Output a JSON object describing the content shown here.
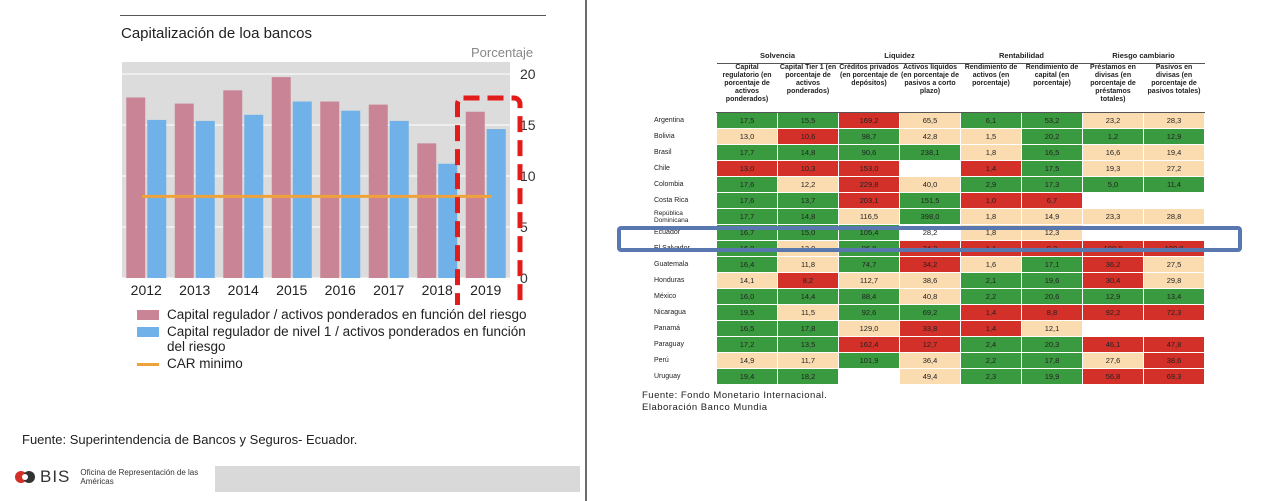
{
  "left": {
    "title": "Capitalización de loa bancos",
    "unit": "Porcentaje",
    "source": "Fuente: Superintendencia de Bancos y Seguros- Ecuador.",
    "logo_text": "BIS",
    "logo_sub": "Oficina de Representación de las Américas"
  },
  "chart_data": {
    "type": "bar",
    "title": "Capitalización de loa bancos",
    "ylabel": "Porcentaje",
    "categories": [
      "2012",
      "2013",
      "2014",
      "2015",
      "2016",
      "2017",
      "2018",
      "2019"
    ],
    "series": [
      {
        "name": "Capital regulador / activos ponderados en función del riesgo",
        "values": [
          17.7,
          17.1,
          18.4,
          19.7,
          17.3,
          17.0,
          13.2,
          16.3
        ]
      },
      {
        "name": "Capital regulador de nivel 1 / activos ponderados en función del riesgo",
        "values": [
          15.5,
          15.4,
          16.0,
          17.3,
          16.4,
          15.4,
          11.2,
          14.6
        ]
      },
      {
        "name": "CAR mínimo",
        "type": "line",
        "values": [
          8,
          8,
          8,
          8,
          8,
          8,
          8,
          8
        ]
      }
    ],
    "ylim": [
      0,
      20
    ],
    "yticks": [
      "0",
      "5",
      "10",
      "15",
      "20"
    ],
    "colors": {
      "s1": "#c98595",
      "s2": "#6fb1e8",
      "s3": "#f0a23a",
      "plot_bg": "#dcdcdc",
      "highlight": "#e21b1b"
    },
    "highlight_category": "2019",
    "grid": true
  },
  "legend": [
    {
      "label": "Capital regulador / activos ponderados en función del riesgo",
      "color": "#c98595",
      "kind": "bar"
    },
    {
      "label": "Capital regulador de nivel 1 / activos ponderados en función del riesgo",
      "color": "#6fb1e8",
      "kind": "bar"
    },
    {
      "label": "CAR minimo",
      "color": "#f0a23a",
      "kind": "line"
    }
  ],
  "table": {
    "groups": [
      {
        "label": "Solvencia",
        "span": 2
      },
      {
        "label": "Liquidez",
        "span": 2
      },
      {
        "label": "Rentabilidad",
        "span": 2
      },
      {
        "label": "Riesgo cambiario",
        "span": 2
      }
    ],
    "headers": [
      "Capital regulatorio (en porcentaje de activos ponderados)",
      "Capital Tier 1 (en porcentaje de activos ponderados)",
      "Créditos privados (en porcentaje de depósitos)",
      "Activos líquidos (en porcentaje de pasivos a corto plazo)",
      "Rendimiento de activos (en porcentaje)",
      "Rendimiento de capital (en porcentaje)",
      "Préstamos en divisas (en porcentaje de préstamos totales)",
      "Pasivos en divisas (en porcentaje de pasivos totales)"
    ],
    "rows": [
      {
        "country": "Argentina",
        "cells": [
          [
            "17,5",
            "g"
          ],
          [
            "15,5",
            "g"
          ],
          [
            "169,2",
            "r"
          ],
          [
            "65,5",
            "p"
          ],
          [
            "6,1",
            "g"
          ],
          [
            "53,2",
            "g"
          ],
          [
            "23,2",
            "p"
          ],
          [
            "28,3",
            "p"
          ]
        ]
      },
      {
        "country": "Bolivia",
        "cells": [
          [
            "13,0",
            "p"
          ],
          [
            "10,6",
            "r"
          ],
          [
            "98,7",
            "g"
          ],
          [
            "42,8",
            "p"
          ],
          [
            "1,5",
            "p"
          ],
          [
            "20,2",
            "g"
          ],
          [
            "1,2",
            "g"
          ],
          [
            "12,9",
            "g"
          ]
        ]
      },
      {
        "country": "Brasil",
        "cells": [
          [
            "17,7",
            "g"
          ],
          [
            "14,8",
            "g"
          ],
          [
            "90,6",
            "g"
          ],
          [
            "238,1",
            "g"
          ],
          [
            "1,8",
            "p"
          ],
          [
            "16,5",
            "g"
          ],
          [
            "16,6",
            "p"
          ],
          [
            "19,4",
            "p"
          ]
        ]
      },
      {
        "country": "Chile",
        "cells": [
          [
            "13,0",
            "r"
          ],
          [
            "10,3",
            "r"
          ],
          [
            "153,0",
            "r"
          ],
          [
            "",
            "w"
          ],
          [
            "1,4",
            "r"
          ],
          [
            "17,5",
            "g"
          ],
          [
            "19,3",
            "p"
          ],
          [
            "27,2",
            "p"
          ]
        ]
      },
      {
        "country": "Colombia",
        "cells": [
          [
            "17,6",
            "g"
          ],
          [
            "12,2",
            "p"
          ],
          [
            "229,8",
            "r"
          ],
          [
            "40,0",
            "p"
          ],
          [
            "2,9",
            "g"
          ],
          [
            "17,3",
            "g"
          ],
          [
            "5,0",
            "g"
          ],
          [
            "11,4",
            "g"
          ]
        ]
      },
      {
        "country": "Costa Rica",
        "cells": [
          [
            "17,6",
            "g"
          ],
          [
            "13,7",
            "g"
          ],
          [
            "203,1",
            "r"
          ],
          [
            "151,5",
            "g"
          ],
          [
            "1,0",
            "r"
          ],
          [
            "6,7",
            "r"
          ],
          [
            "",
            ""
          ],
          [
            "",
            ""
          ]
        ]
      },
      {
        "country": "República Dominicana",
        "cells": [
          [
            "17,7",
            "g"
          ],
          [
            "14,8",
            "g"
          ],
          [
            "116,5",
            "p"
          ],
          [
            "398,0",
            "g"
          ],
          [
            "1,8",
            "p"
          ],
          [
            "14,9",
            "p"
          ],
          [
            "23,3",
            "p"
          ],
          [
            "28,8",
            "p"
          ]
        ]
      },
      {
        "country": "Ecuador",
        "cells": [
          [
            "16,7",
            "g"
          ],
          [
            "15,0",
            "g"
          ],
          [
            "105,4",
            "g"
          ],
          [
            "28,2",
            "w"
          ],
          [
            "1,8",
            "p"
          ],
          [
            "12,3",
            "p"
          ],
          [
            "",
            ""
          ],
          [
            "",
            ""
          ]
        ]
      },
      {
        "country": "El Salvador",
        "cells": [
          [
            "16,0",
            "g"
          ],
          [
            "13,0",
            "p"
          ],
          [
            "96,8",
            "g"
          ],
          [
            "34,2",
            "r"
          ],
          [
            "1,1",
            "r"
          ],
          [
            "9,3",
            "r"
          ],
          [
            "100,0",
            "r"
          ],
          [
            "100,0",
            "r"
          ]
        ]
      },
      {
        "country": "Guatemala",
        "cells": [
          [
            "16,4",
            "g"
          ],
          [
            "11,8",
            "p"
          ],
          [
            "74,7",
            "g"
          ],
          [
            "34,2",
            "r"
          ],
          [
            "1,6",
            "p"
          ],
          [
            "17,1",
            "g"
          ],
          [
            "36,2",
            "r"
          ],
          [
            "27,5",
            "p"
          ]
        ]
      },
      {
        "country": "Honduras",
        "cells": [
          [
            "14,1",
            "p"
          ],
          [
            "8,2",
            "r"
          ],
          [
            "112,7",
            "p"
          ],
          [
            "38,6",
            "p"
          ],
          [
            "2,1",
            "g"
          ],
          [
            "19,6",
            "g"
          ],
          [
            "30,4",
            "r"
          ],
          [
            "29,8",
            "p"
          ]
        ]
      },
      {
        "country": "México",
        "cells": [
          [
            "16,0",
            "g"
          ],
          [
            "14,4",
            "g"
          ],
          [
            "88,4",
            "g"
          ],
          [
            "40,8",
            "p"
          ],
          [
            "2,2",
            "g"
          ],
          [
            "20,6",
            "g"
          ],
          [
            "12,9",
            "g"
          ],
          [
            "13,4",
            "g"
          ]
        ]
      },
      {
        "country": "Nicaragua",
        "cells": [
          [
            "19,5",
            "g"
          ],
          [
            "11,5",
            "p"
          ],
          [
            "92,6",
            "g"
          ],
          [
            "69,2",
            "g"
          ],
          [
            "1,4",
            "r"
          ],
          [
            "8,8",
            "r"
          ],
          [
            "92,2",
            "r"
          ],
          [
            "72,3",
            "r"
          ]
        ]
      },
      {
        "country": "Panamá",
        "cells": [
          [
            "16,5",
            "g"
          ],
          [
            "17,8",
            "g"
          ],
          [
            "129,0",
            "p"
          ],
          [
            "33,8",
            "r"
          ],
          [
            "1,4",
            "r"
          ],
          [
            "12,1",
            "p"
          ],
          [
            "",
            ""
          ],
          [
            "",
            ""
          ]
        ]
      },
      {
        "country": "Paraguay",
        "cells": [
          [
            "17,2",
            "g"
          ],
          [
            "13,5",
            "g"
          ],
          [
            "162,4",
            "r"
          ],
          [
            "12,7",
            "r"
          ],
          [
            "2,4",
            "g"
          ],
          [
            "20,3",
            "g"
          ],
          [
            "46,1",
            "r"
          ],
          [
            "47,8",
            "r"
          ]
        ]
      },
      {
        "country": "Perú",
        "cells": [
          [
            "14,9",
            "p"
          ],
          [
            "11,7",
            "p"
          ],
          [
            "101,9",
            "g"
          ],
          [
            "36,4",
            "p"
          ],
          [
            "2,2",
            "g"
          ],
          [
            "17,8",
            "g"
          ],
          [
            "27,6",
            "p"
          ],
          [
            "38,6",
            "r"
          ]
        ]
      },
      {
        "country": "Uruguay",
        "cells": [
          [
            "19,4",
            "g"
          ],
          [
            "18,2",
            "g"
          ],
          [
            "",
            "w"
          ],
          [
            "49,4",
            "p"
          ],
          [
            "2,3",
            "g"
          ],
          [
            "19,9",
            "g"
          ],
          [
            "56,8",
            "r"
          ],
          [
            "69,3",
            "r"
          ]
        ]
      }
    ],
    "source_line1": "Fuente: Fondo Monetario Internacional.",
    "source_line2": "Elaboración Banco Mundia"
  }
}
